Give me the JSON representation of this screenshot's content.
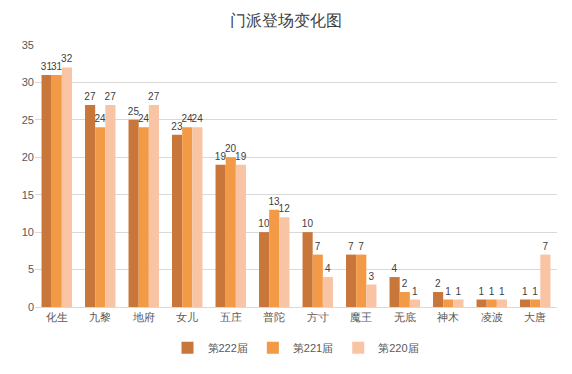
{
  "chart_data": {
    "type": "bar",
    "title": "门派登场变化图",
    "categories": [
      "化生",
      "九黎",
      "地府",
      "女儿",
      "五庄",
      "普陀",
      "方寸",
      "魔王",
      "无底",
      "神木",
      "凌波",
      "大唐"
    ],
    "series": [
      {
        "name": "第222届",
        "color": "#c8763a",
        "values": [
          31,
          27,
          25,
          23,
          19,
          10,
          10,
          7,
          4,
          2,
          1,
          1
        ]
      },
      {
        "name": "第221届",
        "color": "#f29a45",
        "values": [
          31,
          24,
          24,
          24,
          20,
          13,
          7,
          7,
          2,
          1,
          1,
          1
        ]
      },
      {
        "name": "第220届",
        "color": "#f8c4a4",
        "values": [
          32,
          27,
          27,
          24,
          19,
          12,
          4,
          3,
          1,
          1,
          1,
          7
        ]
      }
    ],
    "ylim": [
      0,
      35
    ],
    "yticks": [
      0,
      5,
      10,
      15,
      20,
      25,
      30,
      35
    ],
    "grid": true,
    "legend": "bottom",
    "data_labels": true
  }
}
